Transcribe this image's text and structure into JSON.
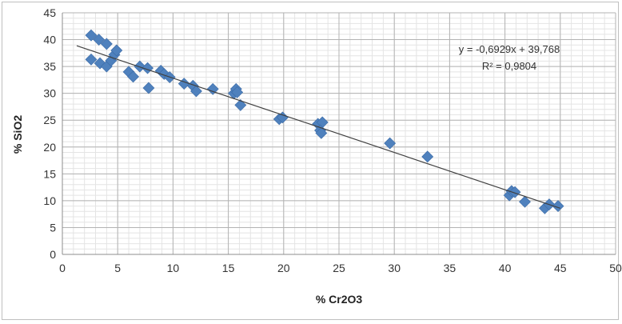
{
  "chart_data": {
    "type": "scatter",
    "title": "",
    "xlabel": "% Cr2O3",
    "ylabel": "% SiO2",
    "xlim": [
      0,
      50
    ],
    "ylim": [
      0,
      45
    ],
    "x_ticks": [
      0,
      5,
      10,
      15,
      20,
      25,
      30,
      35,
      40,
      45,
      50
    ],
    "y_ticks": [
      0,
      5,
      10,
      15,
      20,
      25,
      30,
      35,
      40,
      45
    ],
    "grid": true,
    "legend": "none",
    "marker": "diamond",
    "marker_color": "#4f81bd",
    "trendline_color": "#404040",
    "series": [
      {
        "points": [
          [
            2.6,
            40.8
          ],
          [
            3.3,
            40.0
          ],
          [
            4.0,
            39.2
          ],
          [
            2.6,
            36.3
          ],
          [
            3.4,
            35.6
          ],
          [
            4.0,
            35.0
          ],
          [
            4.4,
            36.1
          ],
          [
            4.7,
            37.2
          ],
          [
            4.9,
            38.0
          ],
          [
            7.0,
            35.0
          ],
          [
            7.7,
            34.7
          ],
          [
            6.0,
            34.0
          ],
          [
            6.4,
            33.1
          ],
          [
            8.9,
            34.2
          ],
          [
            9.2,
            33.6
          ],
          [
            9.7,
            33.0
          ],
          [
            7.8,
            31.0
          ],
          [
            11.0,
            31.8
          ],
          [
            11.8,
            31.4
          ],
          [
            12.1,
            30.4
          ],
          [
            13.6,
            30.8
          ],
          [
            15.5,
            30.0
          ],
          [
            15.7,
            30.8
          ],
          [
            15.8,
            30.2
          ],
          [
            16.1,
            27.8
          ],
          [
            19.6,
            25.2
          ],
          [
            19.9,
            25.5
          ],
          [
            23.1,
            24.3
          ],
          [
            23.5,
            24.6
          ],
          [
            23.3,
            23.1
          ],
          [
            23.4,
            22.6
          ],
          [
            29.6,
            20.7
          ],
          [
            33.0,
            18.2
          ],
          [
            40.4,
            11.0
          ],
          [
            40.6,
            11.8
          ],
          [
            40.9,
            11.6
          ],
          [
            41.8,
            9.8
          ],
          [
            43.6,
            8.6
          ],
          [
            44.0,
            9.3
          ],
          [
            44.8,
            9.0
          ]
        ]
      }
    ],
    "trendline": {
      "slope": -0.6929,
      "intercept": 39.768,
      "x_range": [
        1.3,
        45.0
      ],
      "equation": "y = -0,6929x + 39,768",
      "r2": "R² = 0,9804"
    }
  }
}
